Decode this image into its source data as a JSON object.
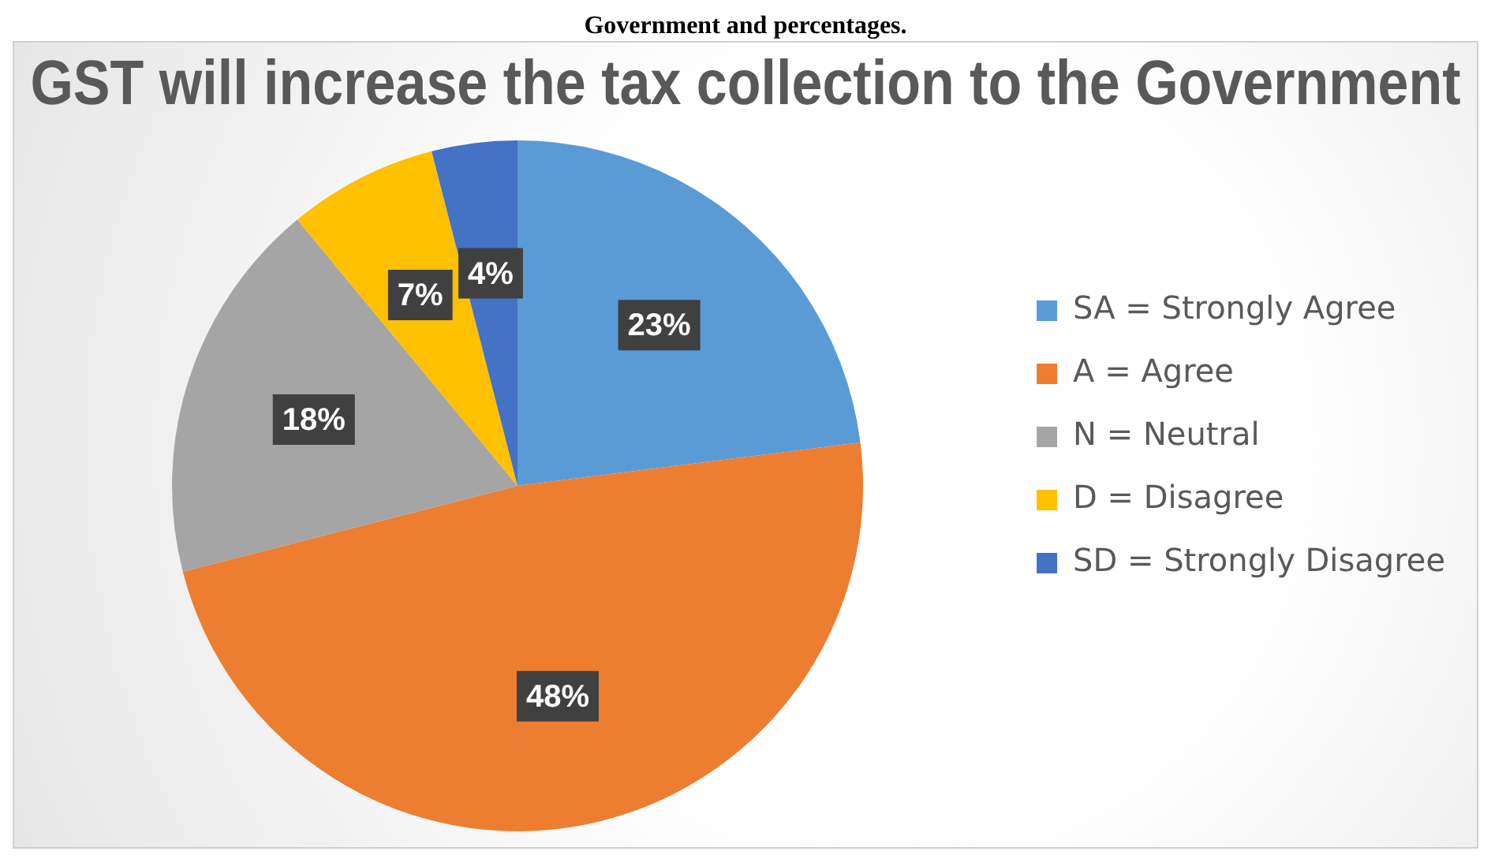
{
  "chart_data": {
    "type": "pie",
    "title": "GST will increase the tax collection to the Government",
    "annotations": [
      "Government and percentages."
    ],
    "categories": [
      "SA = Strongly Agree",
      "A = Agree",
      "N = Neutral",
      "D = Disagree",
      "SD = Strongly Disagree"
    ],
    "values": [
      23,
      48,
      18,
      7,
      4
    ],
    "value_labels": [
      "23%",
      "48%",
      "18%",
      "7%",
      "4%"
    ],
    "colors": [
      "#5b9bd5",
      "#ed7d31",
      "#a5a5a5",
      "#ffc000",
      "#4472c4"
    ],
    "legend": "right"
  }
}
